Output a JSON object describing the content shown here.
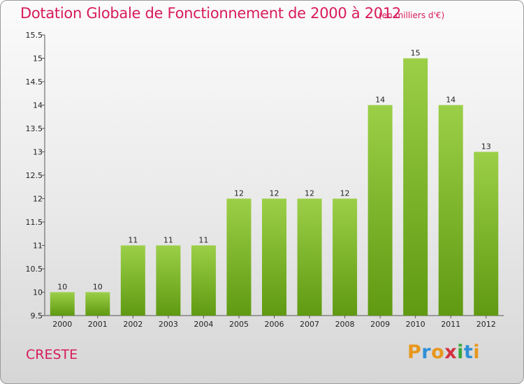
{
  "header": {
    "title": "Dotation Globale de Fonctionnement de 2000 à 2012",
    "subtitle": "(en milliers d'€)"
  },
  "footer": {
    "commune": "CRESTE",
    "logo_text": "Proxiti"
  },
  "colors": {
    "title": "#d81b5a",
    "bar_top": "#9ccf48",
    "bar_bottom": "#5f9a12"
  },
  "chart_data": {
    "type": "bar",
    "title": "Dotation Globale de Fonctionnement de 2000 à 2012",
    "subtitle": "(en milliers d'€)",
    "categories": [
      "2000",
      "2001",
      "2002",
      "2003",
      "2004",
      "2005",
      "2006",
      "2007",
      "2008",
      "2009",
      "2010",
      "2011",
      "2012"
    ],
    "values": [
      10,
      10,
      11,
      11,
      11,
      12,
      12,
      12,
      12,
      14,
      15,
      14,
      13
    ],
    "ylim": [
      9.5,
      15.5
    ],
    "yticks": [
      "9.5",
      "10",
      "10.5",
      "11",
      "11.5",
      "12",
      "12.5",
      "13",
      "13.5",
      "14",
      "14.5",
      "15",
      "15.5"
    ],
    "grid": false,
    "legend": "none"
  }
}
